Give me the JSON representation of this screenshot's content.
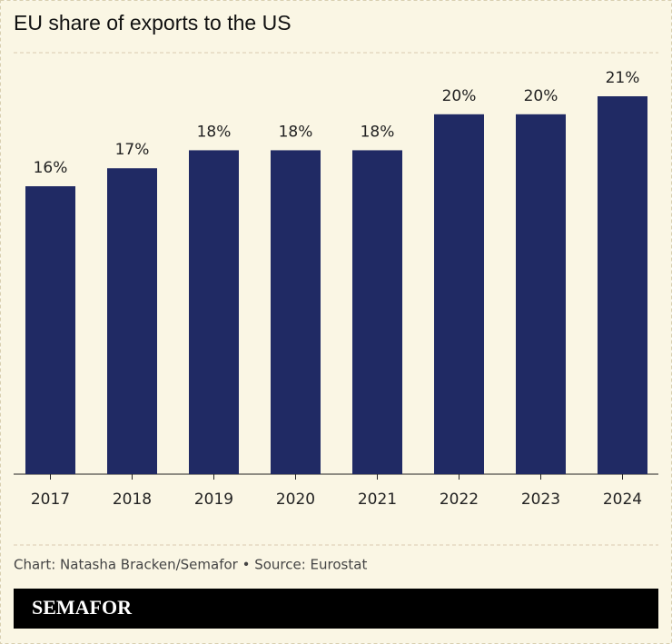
{
  "chart_data": {
    "type": "bar",
    "title": "EU share of exports to the US",
    "categories": [
      "2017",
      "2018",
      "2019",
      "2020",
      "2021",
      "2022",
      "2023",
      "2024"
    ],
    "values": [
      16,
      17,
      18,
      18,
      18,
      20,
      20,
      21
    ],
    "value_labels": [
      "16%",
      "17%",
      "18%",
      "18%",
      "18%",
      "20%",
      "20%",
      "21%"
    ],
    "color": "#202a64",
    "source": "Chart: Natasha Bracken/Semafor • Source: Eurostat",
    "logo": "SEMAFOR"
  }
}
